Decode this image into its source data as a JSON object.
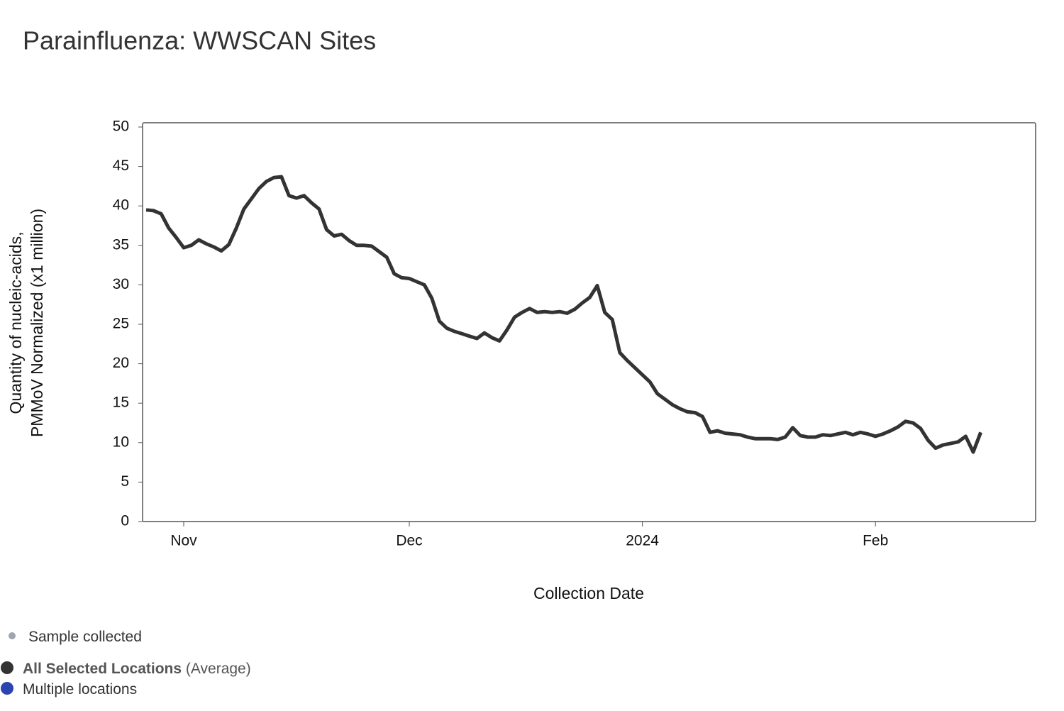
{
  "chart_data": {
    "type": "line",
    "title": "Parainfluenza: WWSCAN Sites",
    "xlabel": "Collection Date",
    "ylabel": [
      "Quantity of nucleic-acids,",
      "PMMoV Normalized (x1 million)"
    ],
    "categories": [
      null,
      null,
      null,
      null,
      null,
      "Nov",
      null,
      null,
      null,
      null,
      null,
      null,
      null,
      null,
      null,
      null,
      null,
      null,
      null,
      null,
      null,
      null,
      null,
      null,
      null,
      null,
      null,
      null,
      null,
      null,
      null,
      null,
      null,
      null,
      null,
      "Dec",
      null,
      null,
      null,
      null,
      null,
      null,
      null,
      null,
      null,
      null,
      null,
      null,
      null,
      null,
      null,
      null,
      null,
      null,
      null,
      null,
      null,
      null,
      null,
      null,
      null,
      null,
      null,
      null,
      null,
      null,
      "2024",
      null,
      null,
      null,
      null,
      null,
      null,
      null,
      null,
      null,
      null,
      null,
      null,
      null,
      null,
      null,
      null,
      null,
      null,
      null,
      null,
      null,
      null,
      null,
      null,
      null,
      null,
      null,
      null,
      null,
      null,
      "Feb",
      null,
      null,
      null,
      null,
      null,
      null,
      null,
      null,
      null,
      null,
      null,
      null,
      null,
      null
    ],
    "series": [
      {
        "name": "All Selected Locations",
        "color": "#333333",
        "values": [
          39.5,
          39.4,
          39.0,
          37.2,
          36.0,
          34.7,
          35.0,
          35.7,
          35.2,
          34.8,
          34.3,
          35.1,
          37.2,
          39.6,
          40.9,
          42.2,
          43.1,
          43.6,
          43.7,
          41.3,
          41.0,
          41.3,
          40.4,
          39.6,
          37.0,
          36.2,
          36.4,
          35.6,
          35.0,
          35.0,
          34.9,
          34.2,
          33.5,
          31.4,
          30.9,
          30.8,
          30.4,
          30.0,
          28.3,
          25.4,
          24.5,
          24.1,
          23.8,
          23.5,
          23.2,
          23.9,
          23.3,
          22.9,
          24.3,
          25.9,
          26.5,
          27.0,
          26.5,
          26.6,
          26.5,
          26.6,
          26.4,
          26.9,
          27.7,
          28.4,
          29.9,
          26.5,
          25.6,
          21.4,
          20.4,
          19.5,
          18.6,
          17.7,
          16.2,
          15.5,
          14.8,
          14.3,
          13.9,
          13.8,
          13.3,
          11.3,
          11.5,
          11.2,
          11.1,
          11.0,
          10.7,
          10.5,
          10.5,
          10.5,
          10.4,
          10.7,
          11.9,
          10.9,
          10.7,
          10.7,
          11.0,
          10.9,
          11.1,
          11.3,
          11.0,
          11.3,
          11.1,
          10.8,
          11.1,
          11.5,
          12.0,
          12.7,
          12.5,
          11.8,
          10.3,
          9.3,
          9.7,
          9.9,
          10.1,
          10.8,
          8.8,
          11.3
        ]
      }
    ],
    "ylim": [
      0,
      50
    ],
    "yticks": [
      0,
      5,
      10,
      15,
      20,
      25,
      30,
      35,
      40,
      45,
      50
    ],
    "legend": [
      {
        "label": "Sample collected",
        "color": "#a0a3b0"
      },
      {
        "label": "All Selected Locations",
        "note": "(Average)",
        "color": "#333333"
      },
      {
        "label": "Multiple locations",
        "color": "#2a44b0"
      }
    ]
  }
}
